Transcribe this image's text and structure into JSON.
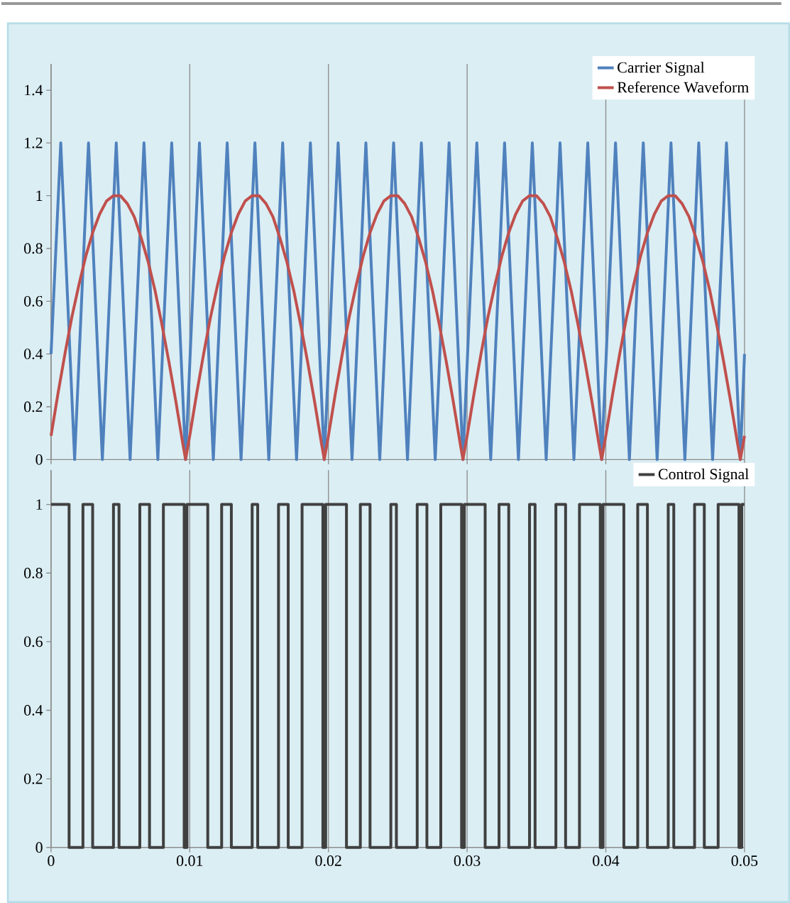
{
  "chart_data": [
    {
      "type": "line",
      "xlim": [
        0,
        0.05
      ],
      "xticks": [
        0,
        0.01,
        0.02,
        0.03,
        0.04,
        0.05
      ],
      "ylim": [
        0,
        1.5
      ],
      "yticks": [
        0,
        0.2,
        0.4,
        0.6,
        0.8,
        1,
        1.2,
        1.4
      ],
      "grid": "x",
      "legend": "top right",
      "tick_labels": "y",
      "series": [
        {
          "name": "Carrier Signal",
          "color": "#4f81bd",
          "x": [
            0,
            0.0007,
            0.0017,
            0.0027,
            0.0037,
            0.0047,
            0.0057,
            0.0067,
            0.0077,
            0.0087,
            0.0097,
            0.0107,
            0.0117,
            0.0127,
            0.0137,
            0.0147,
            0.0157,
            0.0167,
            0.0177,
            0.0187,
            0.0197,
            0.0207,
            0.0217,
            0.0227,
            0.0237,
            0.0247,
            0.0257,
            0.0267,
            0.0277,
            0.0287,
            0.0297,
            0.0307,
            0.0317,
            0.0327,
            0.0337,
            0.0347,
            0.0357,
            0.0367,
            0.0377,
            0.0387,
            0.0397,
            0.0407,
            0.0417,
            0.0427,
            0.0437,
            0.0447,
            0.0457,
            0.0467,
            0.0477,
            0.0487,
            0.0497,
            0.05
          ],
          "values": [
            0.4,
            1.2,
            0,
            1.2,
            0,
            1.2,
            0,
            1.2,
            0,
            1.2,
            0,
            1.2,
            0,
            1.2,
            0,
            1.2,
            0,
            1.2,
            0,
            1.2,
            0,
            1.2,
            0,
            1.2,
            0,
            1.2,
            0,
            1.2,
            0,
            1.2,
            0,
            1.2,
            0,
            1.2,
            0,
            1.2,
            0,
            1.2,
            0,
            1.2,
            0,
            1.2,
            0,
            1.2,
            0,
            1.2,
            0,
            1.2,
            0,
            1.2,
            0,
            0.4
          ]
        },
        {
          "name": "Reference Waveform",
          "color": "#c0504d",
          "x": [
            0,
            0.0005,
            0.001,
            0.0015,
            0.002,
            0.0025,
            0.003,
            0.0035,
            0.004,
            0.0045,
            0.005,
            0.0055,
            0.006,
            0.0065,
            0.007,
            0.0075,
            0.008,
            0.0085,
            0.009,
            0.0095,
            0.0097,
            0.01,
            0.0105,
            0.011,
            0.0115,
            0.012,
            0.0125,
            0.013,
            0.0135,
            0.014,
            0.0145,
            0.015,
            0.0155,
            0.016,
            0.0165,
            0.017,
            0.0175,
            0.018,
            0.0185,
            0.019,
            0.0195,
            0.0197,
            0.02,
            0.0205,
            0.021,
            0.0215,
            0.022,
            0.0225,
            0.023,
            0.0235,
            0.024,
            0.0245,
            0.025,
            0.0255,
            0.026,
            0.0265,
            0.027,
            0.0275,
            0.028,
            0.0285,
            0.029,
            0.0295,
            0.0297,
            0.03,
            0.0305,
            0.031,
            0.0315,
            0.032,
            0.0325,
            0.033,
            0.0335,
            0.034,
            0.0345,
            0.035,
            0.0355,
            0.036,
            0.0365,
            0.037,
            0.0375,
            0.038,
            0.0385,
            0.039,
            0.0395,
            0.0397,
            0.04,
            0.0405,
            0.041,
            0.0415,
            0.042,
            0.0425,
            0.043,
            0.0435,
            0.044,
            0.0445,
            0.045,
            0.0455,
            0.046,
            0.0465,
            0.047,
            0.0475,
            0.048,
            0.0485,
            0.049,
            0.0495,
            0.0497,
            0.05
          ],
          "values": [
            0.09,
            0.25,
            0.4,
            0.54,
            0.66,
            0.77,
            0.86,
            0.93,
            0.98,
            1,
            1,
            0.97,
            0.92,
            0.84,
            0.75,
            0.64,
            0.51,
            0.37,
            0.22,
            0.06,
            0,
            0.09,
            0.25,
            0.4,
            0.54,
            0.66,
            0.77,
            0.86,
            0.93,
            0.98,
            1,
            1,
            0.97,
            0.92,
            0.84,
            0.75,
            0.64,
            0.51,
            0.37,
            0.22,
            0.06,
            0,
            0.09,
            0.25,
            0.4,
            0.54,
            0.66,
            0.77,
            0.86,
            0.93,
            0.98,
            1,
            1,
            0.97,
            0.92,
            0.84,
            0.75,
            0.64,
            0.51,
            0.37,
            0.22,
            0.06,
            0,
            0.09,
            0.25,
            0.4,
            0.54,
            0.66,
            0.77,
            0.86,
            0.93,
            0.98,
            1,
            1,
            0.97,
            0.92,
            0.84,
            0.75,
            0.64,
            0.51,
            0.37,
            0.22,
            0.06,
            0,
            0.09,
            0.25,
            0.4,
            0.54,
            0.66,
            0.77,
            0.86,
            0.93,
            0.98,
            1,
            1,
            0.97,
            0.92,
            0.84,
            0.75,
            0.64,
            0.51,
            0.37,
            0.22,
            0.06,
            0,
            0.09
          ]
        }
      ]
    },
    {
      "type": "step",
      "xlim": [
        0,
        0.05
      ],
      "xticks": [
        0,
        0.01,
        0.02,
        0.03,
        0.04,
        0.05
      ],
      "ylim": [
        0,
        1.1
      ],
      "yticks": [
        0,
        0.2,
        0.4,
        0.6,
        0.8,
        1
      ],
      "grid": "x",
      "legend": "top right",
      "series": [
        {
          "name": "Control Signal",
          "color": "#404040",
          "x": [
            0,
            0.0013,
            0.0023,
            0.003,
            0.0045,
            0.0049,
            0.0064,
            0.0071,
            0.0081,
            0.0096,
            0.0098,
            0.0113,
            0.0123,
            0.013,
            0.0145,
            0.0149,
            0.0164,
            0.0171,
            0.0181,
            0.0196,
            0.0198,
            0.0213,
            0.0223,
            0.023,
            0.0245,
            0.0249,
            0.0264,
            0.0271,
            0.0281,
            0.0296,
            0.0298,
            0.0313,
            0.0323,
            0.033,
            0.0345,
            0.0349,
            0.0364,
            0.0371,
            0.0381,
            0.0396,
            0.0398,
            0.0413,
            0.0423,
            0.043,
            0.0445,
            0.0449,
            0.0464,
            0.0471,
            0.0481,
            0.0496,
            0.0498,
            0.05
          ],
          "values": [
            1,
            0,
            1,
            0,
            1,
            0,
            1,
            0,
            1,
            0,
            1,
            0,
            1,
            0,
            1,
            0,
            1,
            0,
            1,
            0,
            1,
            0,
            1,
            0,
            1,
            0,
            1,
            0,
            1,
            0,
            1,
            0,
            1,
            0,
            1,
            0,
            1,
            0,
            1,
            0,
            1,
            0,
            1,
            0,
            1,
            0,
            1,
            0,
            1,
            0,
            1,
            1
          ]
        }
      ]
    }
  ]
}
